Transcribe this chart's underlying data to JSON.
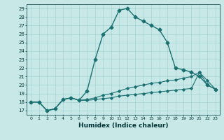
{
  "xlabel": "Humidex (Indice chaleur)",
  "background_color": "#c8e8e8",
  "line_color": "#1a7070",
  "xlim": [
    -0.5,
    23.5
  ],
  "ylim": [
    16.5,
    29.5
  ],
  "xticks": [
    0,
    1,
    2,
    3,
    4,
    5,
    6,
    7,
    8,
    9,
    10,
    11,
    12,
    13,
    14,
    15,
    16,
    17,
    18,
    19,
    20,
    21,
    22,
    23
  ],
  "yticks": [
    17,
    18,
    19,
    20,
    21,
    22,
    23,
    24,
    25,
    26,
    27,
    28,
    29
  ],
  "series": [
    {
      "x": [
        0,
        1,
        2,
        3,
        4,
        5,
        6,
        7,
        8,
        9,
        10,
        11,
        12,
        13,
        14,
        15,
        16,
        17,
        18,
        19,
        20,
        21,
        22,
        23
      ],
      "y": [
        18,
        18,
        17,
        17.2,
        18.3,
        18.5,
        18.2,
        19.3,
        23,
        26,
        26.8,
        28.8,
        29,
        28,
        27.5,
        27,
        26.5,
        25,
        22,
        21.8,
        21.5,
        21,
        20,
        19.5
      ],
      "marker": "D",
      "markersize": 2.5,
      "linewidth": 1.0
    },
    {
      "x": [
        0,
        1,
        2,
        3,
        4,
        5,
        6,
        7,
        8,
        9,
        10,
        11,
        12,
        13,
        14,
        15,
        16,
        17,
        18,
        19,
        20,
        21,
        22,
        23
      ],
      "y": [
        18,
        18,
        17,
        17.2,
        18.3,
        18.5,
        18.2,
        18.3,
        18.5,
        18.8,
        19.0,
        19.3,
        19.6,
        19.8,
        20.0,
        20.2,
        20.3,
        20.5,
        20.6,
        20.8,
        21.0,
        21.5,
        20.0,
        19.5
      ],
      "marker": "D",
      "markersize": 1.8,
      "linewidth": 0.8
    },
    {
      "x": [
        0,
        1,
        2,
        3,
        4,
        5,
        6,
        7,
        8,
        9,
        10,
        11,
        12,
        13,
        14,
        15,
        16,
        17,
        18,
        19,
        20,
        21,
        22,
        23
      ],
      "y": [
        18,
        18,
        17,
        17.2,
        18.3,
        18.5,
        18.2,
        18.2,
        18.3,
        18.4,
        18.5,
        18.7,
        18.8,
        18.9,
        19.0,
        19.1,
        19.2,
        19.3,
        19.4,
        19.5,
        19.6,
        21.5,
        20.5,
        19.5
      ],
      "marker": "D",
      "markersize": 1.8,
      "linewidth": 0.8
    }
  ]
}
